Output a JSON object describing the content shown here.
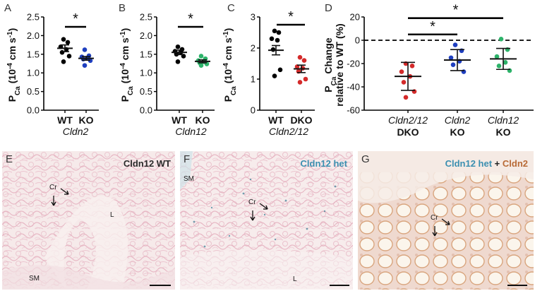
{
  "colors": {
    "wt": "#000000",
    "cldn2_ko": "#1f3fbf",
    "cldn12_ko": "#2db36a",
    "dko": "#d42a2a",
    "stain_blue": "#3b8fb0",
    "stain_brown": "#b86a36",
    "tissue_pink": "#e8b9c6"
  },
  "chart_data": [
    {
      "panel": "A",
      "type": "scatter",
      "ylabel_main": "P",
      "ylabel_sub": "Ca",
      "ylabel_rest": " (10",
      "ylabel_exp": "-4",
      "ylabel_unit": " cm s",
      "ylabel_unit_exp": "-1",
      "ylabel_close": ")",
      "ylim": [
        0,
        2.5
      ],
      "yticks": [
        "0.0",
        "0.5",
        "1.0",
        "1.5",
        "2.0",
        "2.5"
      ],
      "categories": [
        "WT",
        "KO"
      ],
      "xsublabel": "Cldn2",
      "significance": "*",
      "series": [
        {
          "name": "WT",
          "color": "#000000",
          "mean": 1.66,
          "sem": 0.09,
          "values": [
            1.9,
            1.82,
            1.7,
            1.63,
            1.55,
            1.45,
            1.3
          ]
        },
        {
          "name": "KO",
          "color": "#1f3fbf",
          "mean": 1.39,
          "sem": 0.05,
          "values": [
            1.62,
            1.46,
            1.43,
            1.4,
            1.37,
            1.33,
            1.2
          ]
        }
      ]
    },
    {
      "panel": "B",
      "type": "scatter",
      "ylabel_main": "P",
      "ylabel_sub": "Ca",
      "ylabel_rest": " (10",
      "ylabel_exp": "-4",
      "ylabel_unit": " cm s",
      "ylabel_unit_exp": "-1",
      "ylabel_close": ")",
      "ylim": [
        0,
        2.5
      ],
      "yticks": [
        "0.0",
        "0.5",
        "1.0",
        "1.5",
        "2.0",
        "2.5"
      ],
      "categories": [
        "WT",
        "KO"
      ],
      "xsublabel": "Cldn12",
      "significance": "*",
      "series": [
        {
          "name": "WT",
          "color": "#000000",
          "mean": 1.55,
          "sem": 0.06,
          "values": [
            1.7,
            1.63,
            1.58,
            1.55,
            1.5,
            1.45,
            1.3
          ]
        },
        {
          "name": "KO",
          "color": "#2db36a",
          "mean": 1.31,
          "sem": 0.04,
          "values": [
            1.45,
            1.38,
            1.33,
            1.3,
            1.27,
            1.24,
            1.2
          ]
        }
      ]
    },
    {
      "panel": "C",
      "type": "scatter",
      "ylabel_main": "P",
      "ylabel_sub": "Ca",
      "ylabel_rest": " (10",
      "ylabel_exp": "-4",
      "ylabel_unit": " cm s",
      "ylabel_unit_exp": "-1",
      "ylabel_close": ")",
      "ylim": [
        0,
        3
      ],
      "yticks": [
        "0",
        "1",
        "2",
        "3"
      ],
      "categories": [
        "WT",
        "DKO"
      ],
      "xsublabel": "Cldn2/12",
      "significance": "*",
      "series": [
        {
          "name": "WT",
          "color": "#000000",
          "mean": 1.93,
          "sem": 0.15,
          "values": [
            2.55,
            2.5,
            2.3,
            2.25,
            1.95,
            1.3,
            1.1
          ]
        },
        {
          "name": "DKO",
          "color": "#d42a2a",
          "mean": 1.33,
          "sem": 0.12,
          "values": [
            1.7,
            1.6,
            1.4,
            1.35,
            1.25,
            1.0,
            0.9
          ]
        }
      ]
    },
    {
      "panel": "D",
      "type": "scatter",
      "ylabel_line1_main": "P",
      "ylabel_line1_sub": "Ca",
      "ylabel_line1_rest": " Change",
      "ylabel_line2": "relative to WT (%)",
      "ylim": [
        -60,
        20
      ],
      "yticks": [
        "20",
        "0",
        "-20",
        "-40",
        "-60"
      ],
      "reference_line": 0,
      "categories": [
        {
          "top": "Cldn2/12",
          "bottom": "DKO"
        },
        {
          "top": "Cldn2",
          "bottom": "KO"
        },
        {
          "top": "Cldn12",
          "bottom": "KO"
        }
      ],
      "significance": [
        "*",
        "*"
      ],
      "series": [
        {
          "name": "Cldn2/12 DKO",
          "color": "#d42a2a",
          "mean": -31,
          "sd": 12,
          "values": [
            -20,
            -22,
            -27,
            -31,
            -36,
            -44,
            -49
          ]
        },
        {
          "name": "Cldn2 KO",
          "color": "#1f3fbf",
          "mean": -17,
          "sd": 9,
          "values": [
            -4,
            -9,
            -15,
            -18,
            -21,
            -27
          ]
        },
        {
          "name": "Cldn12 KO",
          "color": "#2db36a",
          "mean": -16,
          "sd": 9,
          "values": [
            1,
            -8,
            -14,
            -19,
            -22,
            -26
          ]
        }
      ]
    }
  ],
  "micrographs": [
    {
      "panel": "E",
      "title": "Cldn12 WT",
      "labels": [
        "Cr",
        "L",
        "SM"
      ]
    },
    {
      "panel": "F",
      "title": "Cldn12 het",
      "labels": [
        "SM",
        "Cr",
        "L"
      ]
    },
    {
      "panel": "G",
      "title_part1": "Cldn12 het",
      "title_sep": " + ",
      "title_part2": "Cldn2",
      "labels": [
        "Cr"
      ]
    }
  ]
}
